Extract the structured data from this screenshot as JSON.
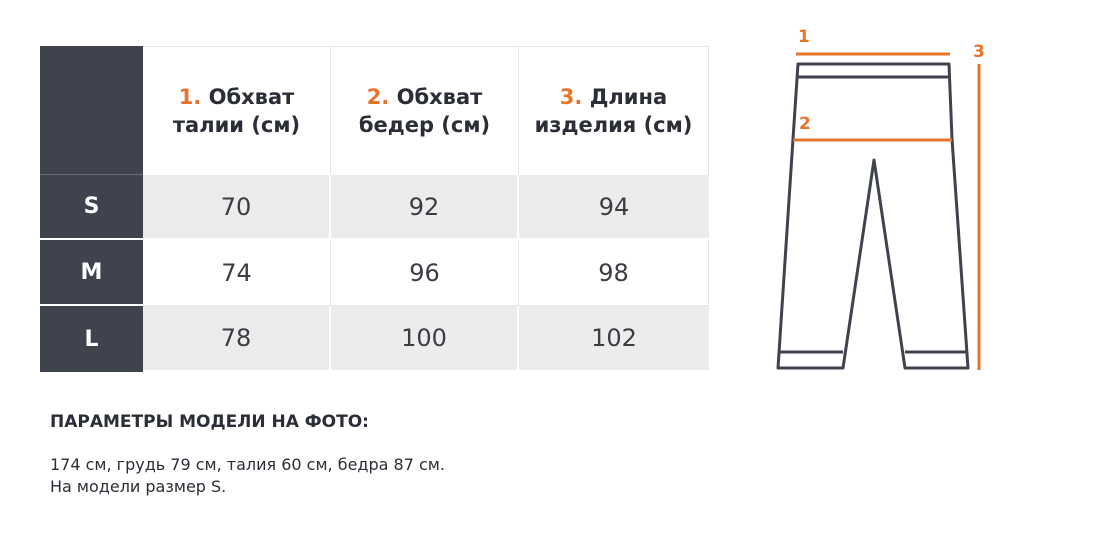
{
  "table": {
    "headers": [
      {
        "num": "1.",
        "line1": "Обхват",
        "line2": "талии (см)"
      },
      {
        "num": "2.",
        "line1": "Обхват",
        "line2": "бедер (см)"
      },
      {
        "num": "3.",
        "line1": "Длина",
        "line2": "изделия (см)"
      }
    ],
    "rows": [
      {
        "size": "S",
        "values": [
          "70",
          "92",
          "94"
        ]
      },
      {
        "size": "M",
        "values": [
          "74",
          "96",
          "98"
        ]
      },
      {
        "size": "L",
        "values": [
          "78",
          "100",
          "102"
        ]
      }
    ]
  },
  "model": {
    "title": "ПАРАМЕТРЫ МОДЕЛИ НА ФОТО:",
    "line1": "174 см, грудь 79 см, талия 60 см, бедра 87 см.",
    "line2": "На модели размер S."
  },
  "diagram": {
    "labels": {
      "waist": "1",
      "hips": "2",
      "length": "3"
    },
    "accent_color": "#e8742c",
    "outline_color": "#3f434d"
  }
}
